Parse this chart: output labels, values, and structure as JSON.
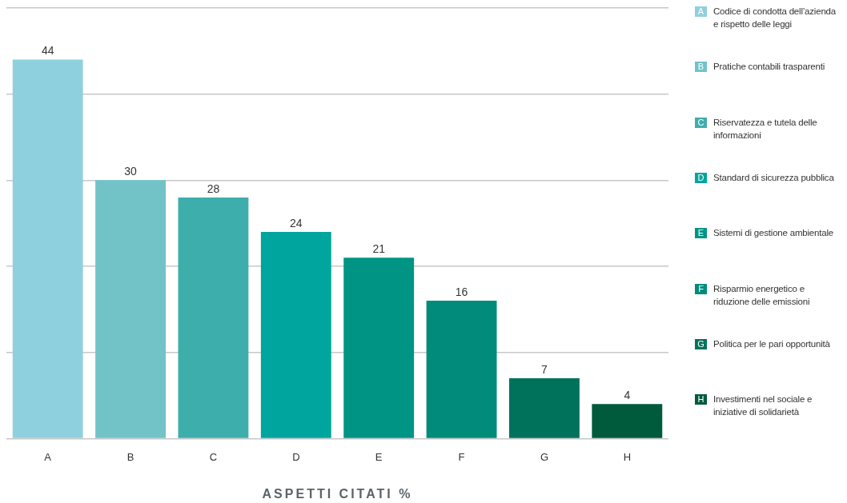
{
  "chart_data": {
    "type": "bar",
    "title": "ASPETTI CITATI %",
    "categories": [
      "A",
      "B",
      "C",
      "D",
      "E",
      "F",
      "G",
      "H"
    ],
    "values": [
      44,
      30,
      28,
      24,
      21,
      16,
      7,
      4
    ],
    "colors": [
      "#8fd0de",
      "#72c3c7",
      "#3eaeac",
      "#00a59d",
      "#009485",
      "#008b7a",
      "#00725c",
      "#005a3c"
    ],
    "ylim": [
      0,
      50
    ],
    "yticks": [
      {
        "value": 0,
        "label": null
      },
      {
        "value": 10,
        "label": null
      },
      {
        "value": 20,
        "label": null
      },
      {
        "value": 30,
        "label": null
      },
      {
        "value": 40,
        "label": null
      },
      {
        "value": 50,
        "label": null
      }
    ],
    "grid": "y",
    "tick_labels": "x",
    "data_labels": true,
    "annotations": [
      "Codice di condotta dell’azienda e rispetto delle leggi",
      "Pratiche contabili trasparenti",
      "Riservatezza e tutela delle informazioni",
      "Standard di sicurezza pubblica",
      "Sistemi di gestione ambientale",
      "Risparmio energetico e riduzione delle emissioni",
      "Politica per le pari opportunità",
      "Investimenti nel sociale e iniziative di solidarietà"
    ]
  }
}
